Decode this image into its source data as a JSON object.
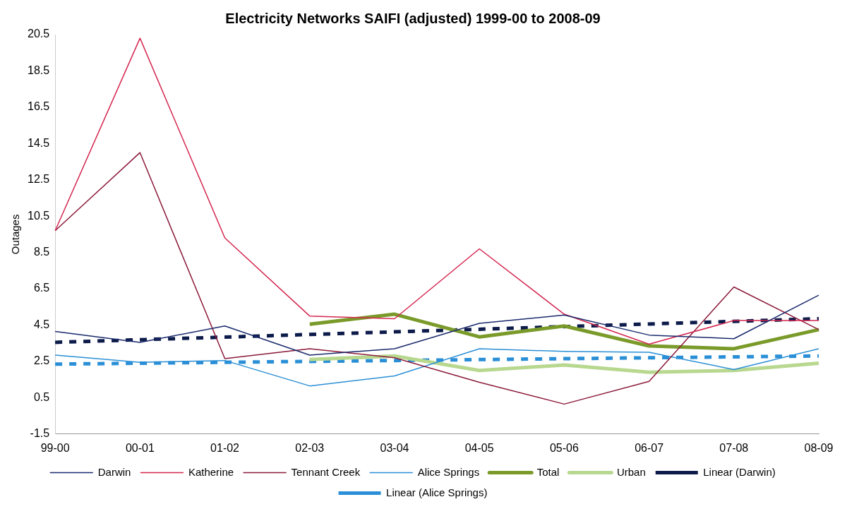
{
  "chart_data": {
    "type": "line",
    "title": "Electricity Networks SAIFI (adjusted) 1999-00 to 2008-09",
    "ylabel": "Outages",
    "categories": [
      "99-00",
      "00-01",
      "01-02",
      "02-03",
      "03-04",
      "04-05",
      "05-06",
      "06-07",
      "07-08",
      "08-09"
    ],
    "ylim": [
      -1.5,
      20.5
    ],
    "yticks": [
      -1.5,
      0.5,
      2.5,
      4.5,
      6.5,
      8.5,
      10.5,
      12.5,
      14.5,
      16.5,
      18.5,
      20.5
    ],
    "grid": false,
    "legend": "bottom",
    "marker": "none",
    "line_style": "solid",
    "series": [
      {
        "name": "Darwin",
        "color": "#1a2a6c",
        "values": [
          4.15,
          3.55,
          4.45,
          2.85,
          3.2,
          4.6,
          5.05,
          3.95,
          3.75,
          6.15
        ]
      },
      {
        "name": "Katherine",
        "color": "#d4264f",
        "values": [
          9.7,
          20.3,
          9.3,
          5.0,
          4.85,
          8.7,
          5.1,
          3.45,
          4.75,
          4.75
        ]
      },
      {
        "name": "Tennant Creek",
        "color": "#8b1a3a",
        "values": [
          9.7,
          14.0,
          2.65,
          3.2,
          2.7,
          1.35,
          0.15,
          1.4,
          6.6,
          4.25
        ]
      },
      {
        "name": "Alice Springs",
        "color": "#2a8fd6",
        "values": [
          2.85,
          2.45,
          2.55,
          1.15,
          1.7,
          3.2,
          3.05,
          3.0,
          2.05,
          3.2
        ]
      },
      {
        "name": "Total",
        "color": "#7a9a2a",
        "values": [
          null,
          null,
          null,
          4.55,
          5.1,
          3.85,
          4.45,
          3.35,
          3.2,
          4.25
        ]
      },
      {
        "name": "Urban",
        "color": "#b8d890",
        "values": [
          null,
          null,
          null,
          2.6,
          2.8,
          2.0,
          2.3,
          1.9,
          2.0,
          2.4
        ]
      },
      {
        "name": "Linear (Darwin)",
        "color": "#0d1b4a",
        "line_style": "dashed",
        "values": [
          3.55,
          null,
          null,
          null,
          null,
          null,
          null,
          null,
          null,
          4.85
        ]
      },
      {
        "name": "Linear (Alice Springs)",
        "color": "#2a8fd6",
        "line_style": "dashed",
        "values": [
          2.35,
          null,
          null,
          null,
          null,
          null,
          null,
          null,
          null,
          2.8
        ]
      }
    ]
  }
}
